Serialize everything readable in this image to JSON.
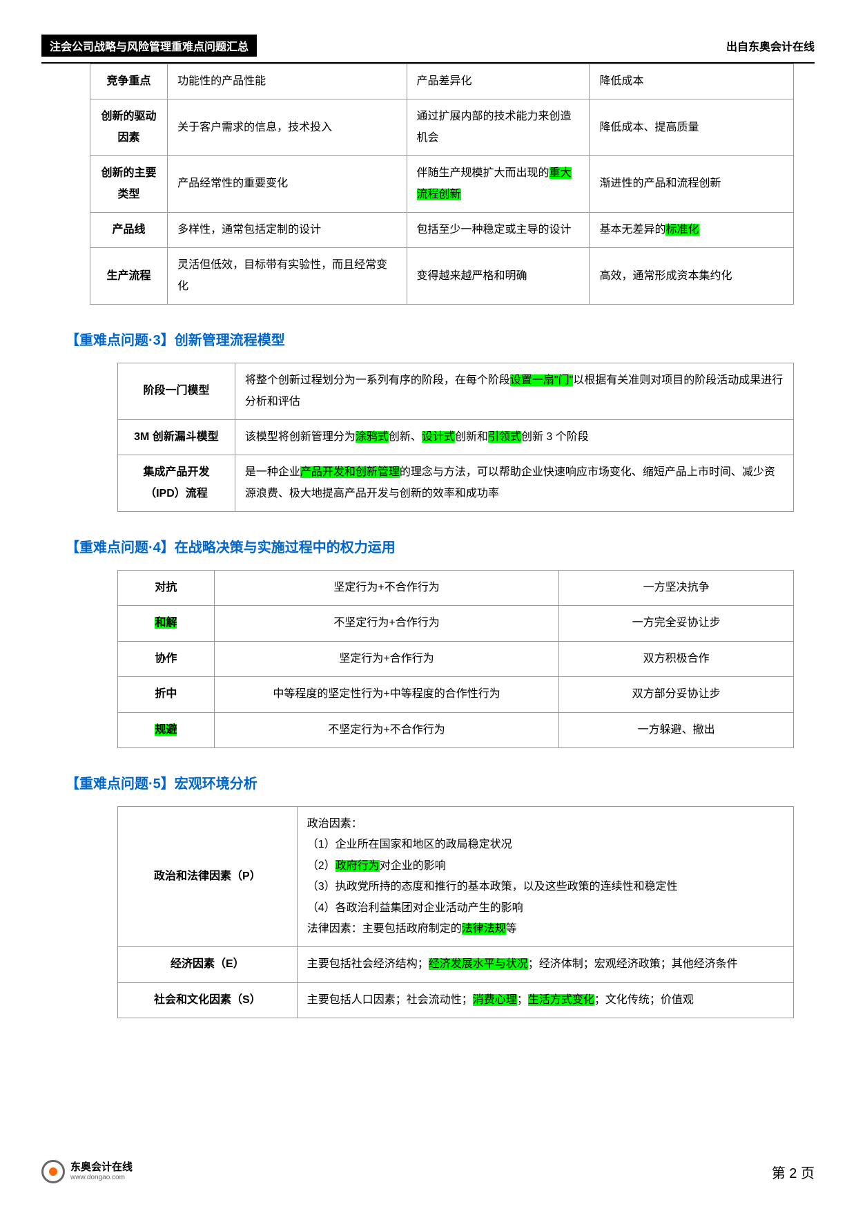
{
  "header": {
    "left": "注会公司战略与风险管理重难点问题汇总",
    "right": "出自东奥会计在线"
  },
  "table1": {
    "rows": [
      {
        "c1": "竞争重点",
        "c2": "功能性的产品性能",
        "c3": "产品差异化",
        "c4": "降低成本"
      },
      {
        "c1": "创新的驱动因素",
        "c2": "关于客户需求的信息，技术投入",
        "c3": "通过扩展内部的技术能力来创造机会",
        "c4": "降低成本、提高质量"
      },
      {
        "c1": "创新的主要类型",
        "c2": "产品经常性的重要变化",
        "c3_pre": "伴随生产规模扩大而出现的",
        "c3_hl": "重大流程创新",
        "c4": "渐进性的产品和流程创新"
      },
      {
        "c1": "产品线",
        "c2": "多样性，通常包括定制的设计",
        "c3": "包括至少一种稳定或主导的设计",
        "c4_pre": "基本无差异的",
        "c4_hl": "标准化"
      },
      {
        "c1": "生产流程",
        "c2": "灵活但低效，目标带有实验性，而且经常变化",
        "c3": "变得越来越严格和明确",
        "c4": "高效，通常形成资本集约化"
      }
    ]
  },
  "section3": {
    "title": "【重难点问题·3】创新管理流程模型",
    "rows": [
      {
        "c1": "阶段一门模型",
        "c2_pre": "将整个创新过程划分为一系列有序的阶段，在每个阶段",
        "c2_hl": "设置一扇\"门\"",
        "c2_post": "以根据有关准则对项目的阶段活动成果进行分析和评估"
      },
      {
        "c1": "3M 创新漏斗模型",
        "c2_pre": "该模型将创新管理分为",
        "c2_h1": "涂鸦式",
        "c2_m1": "创新、",
        "c2_h2": "设计式",
        "c2_m2": "创新和",
        "c2_h3": "引领式",
        "c2_post": "创新 3 个阶段"
      },
      {
        "c1": "集成产品开发（IPD）流程",
        "c2_pre": "是一种企业",
        "c2_hl": "产品开发和创新管理",
        "c2_post": "的理念与方法，可以帮助企业快速响应市场变化、缩短产品上市时间、减少资源浪费、极大地提高产品开发与创新的效率和成功率"
      }
    ]
  },
  "section4": {
    "title": "【重难点问题·4】在战略决策与实施过程中的权力运用",
    "rows": [
      {
        "c1": "对抗",
        "c1_hl": false,
        "c2": "坚定行为+不合作行为",
        "c3": "一方坚决抗争"
      },
      {
        "c1": "和解",
        "c1_hl": true,
        "c2": "不坚定行为+合作行为",
        "c3": "一方完全妥协让步"
      },
      {
        "c1": "协作",
        "c1_hl": false,
        "c2": "坚定行为+合作行为",
        "c3": "双方积极合作"
      },
      {
        "c1": "折中",
        "c1_hl": false,
        "c2": "中等程度的坚定性行为+中等程度的合作性行为",
        "c3": "双方部分妥协让步"
      },
      {
        "c1": "规避",
        "c1_hl": true,
        "c2": "不坚定行为+不合作行为",
        "c3": "一方躲避、撤出"
      }
    ]
  },
  "section5": {
    "title": "【重难点问题·5】宏观环境分析",
    "rows": [
      {
        "c1": "政治和法律因素（P）",
        "lines": [
          {
            "t": "政治因素："
          },
          {
            "t": "（1）企业所在国家和地区的政局稳定状况"
          },
          {
            "pre": "（2）",
            "hl": "政府行为",
            "post": "对企业的影响"
          },
          {
            "t": "（3）执政党所持的态度和推行的基本政策，以及这些政策的连续性和稳定性"
          },
          {
            "t": "（4）各政治利益集团对企业活动产生的影响"
          },
          {
            "pre": "法律因素：主要包括政府制定的",
            "hl": "法律法规",
            "post": "等"
          }
        ]
      },
      {
        "c1": "经济因素（E）",
        "lines": [
          {
            "pre": "主要包括社会经济结构；",
            "hl": "经济发展水平与状况",
            "post": "；经济体制；宏观经济政策；其他经济条件"
          }
        ]
      },
      {
        "c1": "社会和文化因素（S）",
        "lines": [
          {
            "pre": "主要包括人口因素；社会流动性；",
            "hl": "消费心理",
            "mid": "；",
            "hl2": "生活方式变化",
            "post": "；文化传统；价值观"
          }
        ]
      }
    ]
  },
  "footer": {
    "logo_cn": "东奥会计在线",
    "logo_en": "www.dongao.com",
    "page": "第 2 页"
  }
}
